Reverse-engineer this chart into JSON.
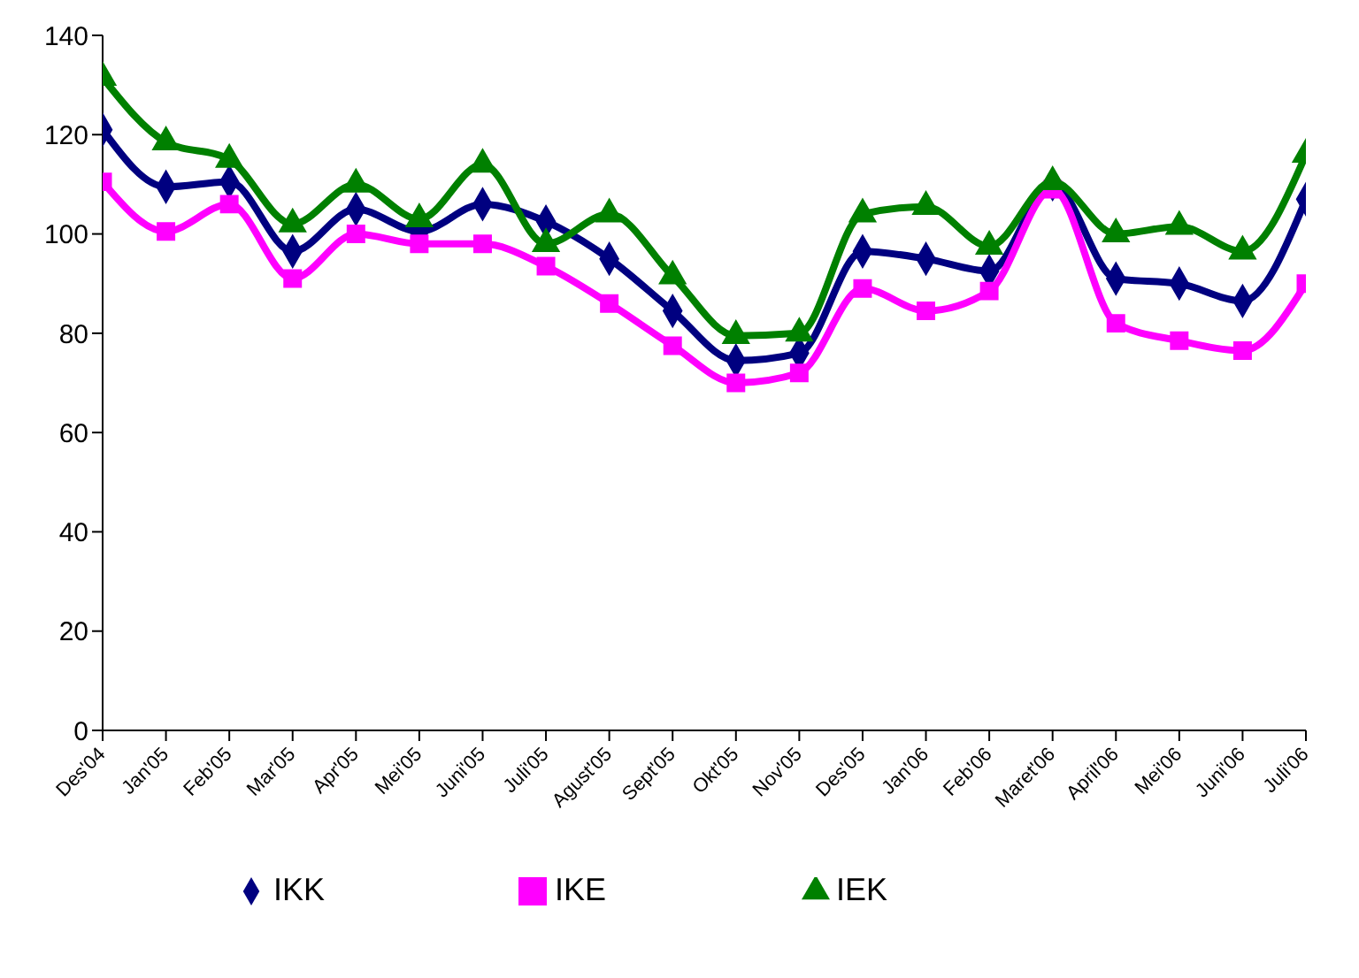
{
  "chart_data": {
    "type": "line",
    "categories": [
      "Des'04",
      "Jan'05",
      "Feb'05",
      "Mar'05",
      "Apr'05",
      "Mei'05",
      "Juni'05",
      "Juli'05",
      "Agust'05",
      "Sept'05",
      "Okt'05",
      "Nov'05",
      "Des'05",
      "Jan'06",
      "Feb'06",
      "Maret'06",
      "April'06",
      "Mei'06",
      "Juni'06",
      "Juli'06"
    ],
    "series": [
      {
        "name": "IKK",
        "color": "#000080",
        "marker": "diamond",
        "values": [
          121,
          109.5,
          110.5,
          96.5,
          105,
          100.5,
          106,
          102.5,
          95,
          84.5,
          74.5,
          76,
          96.5,
          95,
          92.5,
          110,
          91,
          90,
          86.5,
          107
        ]
      },
      {
        "name": "IKE",
        "color": "#ff00ff",
        "marker": "square",
        "values": [
          110.5,
          100.5,
          106,
          91,
          100,
          98,
          98,
          93.5,
          86,
          77.5,
          70,
          72,
          89,
          84.5,
          88.5,
          109,
          82,
          78.5,
          76.5,
          90
        ]
      },
      {
        "name": "IEK",
        "color": "#008000",
        "marker": "triangle",
        "values": [
          131.5,
          118.5,
          115,
          102,
          110,
          103,
          114,
          98,
          104,
          91.5,
          79.5,
          80,
          104,
          105.5,
          97.5,
          110.5,
          100,
          101.5,
          96.5,
          116
        ]
      }
    ],
    "ylim": [
      0,
      140
    ],
    "yticks": [
      0,
      20,
      40,
      60,
      80,
      100,
      120,
      140
    ],
    "legend": "bottom"
  }
}
